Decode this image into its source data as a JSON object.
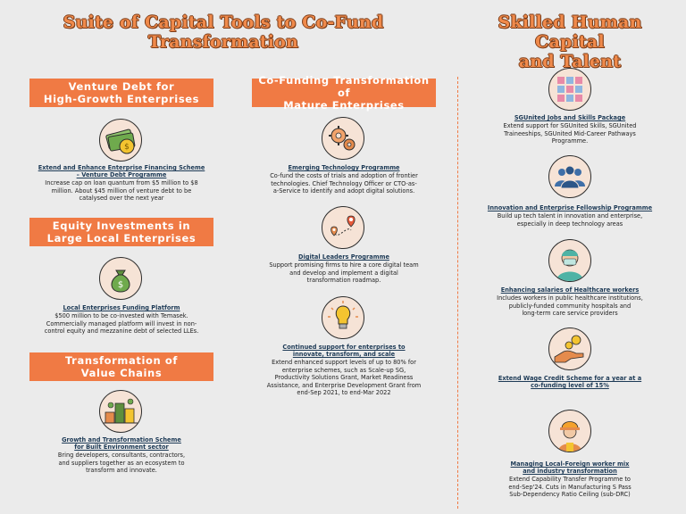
{
  "titles": {
    "left_line1": "Suite of Capital Tools to Co-Fund",
    "left_line2": "Transformation",
    "right_line1": "Skilled Human Capital",
    "right_line2": "and Talent"
  },
  "banners": {
    "venture_line1": "Venture Debt for",
    "venture_line2": "High-Growth Enterprises",
    "equity_line1": "Equity Investments in",
    "equity_line2": "Large Local Enterprises",
    "value_line1": "Transformation of",
    "value_line2": "Value Chains",
    "cofund_line1": "Co-Funding Transformation of",
    "cofund_line2": "Mature Enterprises"
  },
  "items": {
    "efs": {
      "icon": "money-coin-icon",
      "title_line1": "Extend and Enhance Enterprise Financing Scheme",
      "title_line2": "– Venture Debt Programme",
      "desc_line1": "Increase cap on loan quantum from $5 million to $8",
      "desc_line2": "million. About $45 million of venture debt to be",
      "desc_line3": "catalysed over the next year"
    },
    "lefp": {
      "icon": "money-bag-icon",
      "title": "Local Enterprises Funding Platform",
      "desc_line1": "$500 million to be co-invested with Temasek.",
      "desc_line2": "Commercially managed platform will invest in non-",
      "desc_line3": "control equity and mezzanine debt of selected LLEs."
    },
    "built": {
      "icon": "city-map-icon",
      "title_line1": "Growth and Transformation Scheme",
      "title_line2": "for Built Environment sector",
      "desc_line1": "Bring developers, consultants, contractors,",
      "desc_line2": "and suppliers together as an ecosystem to",
      "desc_line3": "transform and innovate."
    },
    "etp": {
      "icon": "gears-icon",
      "title": "Emerging Technology Programme",
      "desc_line1": "Co-fund the costs of trials and adoption of frontier",
      "desc_line2": "technologies. Chief Technology Officer or CTO-as-",
      "desc_line3": "a-Service to identify and adopt digital solutions."
    },
    "dlp": {
      "icon": "map-pins-icon",
      "title": "Digital Leaders Programme",
      "desc_line1": "Support promising firms to hire a core digital team",
      "desc_line2": "and develop and implement a digital",
      "desc_line3": "transformation roadmap."
    },
    "support": {
      "icon": "lightbulb-icon",
      "title_line1": "Continued support for enterprises to",
      "title_line2": "innovate, transform, and scale",
      "desc_line1": "Extend enhanced support levels of up to 80% for",
      "desc_line2": "enterprise schemes, such as Scale-up SG,",
      "desc_line3": "Productivity Solutions Grant, Market Readiness",
      "desc_line4": "Assistance, and Enterprise Development Grant from",
      "desc_line5": "end-Sep 2021, to end-Mar 2022"
    },
    "sgunited": {
      "icon": "puzzle-tiles-icon",
      "title": "SGUnited Jobs and Skills Package",
      "desc_line1": "Extend support for SGUnited Skills, SGUnited",
      "desc_line2": "Traineeships, SGUnited Mid-Career Pathways",
      "desc_line3": "Programme."
    },
    "ief": {
      "icon": "people-group-icon",
      "title": "Innovation and Enterprise Fellowship Programme",
      "desc_line1": "Build up tech talent in innovation and enterprise,",
      "desc_line2": "especially in deep technology areas"
    },
    "healthcare": {
      "icon": "healthcare-worker-icon",
      "title": "Enhancing salaries of Healthcare workers",
      "desc_line1": "Includes workers in public healthcare institutions,",
      "desc_line2": "publicly-funded community hospitals and",
      "desc_line3": "long-term care service providers"
    },
    "wcs": {
      "icon": "hand-coins-icon",
      "title_line1": "Extend Wage Credit Scheme for a year at a",
      "title_line2": "co-funding level of 15%"
    },
    "foreign": {
      "icon": "construction-worker-icon",
      "title_line1": "Managing Local-Foreign worker mix",
      "title_line2": "and industry transformation",
      "desc_line1": "Extend Capability Transfer Programme to",
      "desc_line2": "end-Sep'24. Cuts in Manufacturing S Pass",
      "desc_line3": "Sub-Dependency Ratio Ceiling (sub-DRC)"
    }
  },
  "colors": {
    "accent": "#f07a44",
    "title": "#f08a4b",
    "link": "#1d3a56",
    "background": "#ebebeb"
  }
}
